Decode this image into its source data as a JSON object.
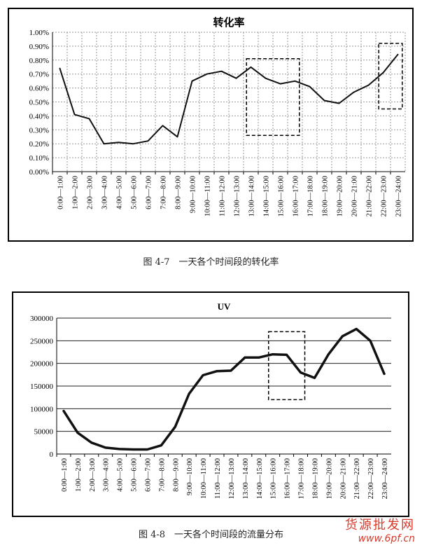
{
  "figures": [
    {
      "caption": "图 4-7　一天各个时间段的转化率"
    },
    {
      "caption": "图 4-8　一天各个时间段的流量分布"
    }
  ],
  "watermark": {
    "text": "货源批发网",
    "url": "www.6pf.cn"
  },
  "chart_data": [
    {
      "type": "line",
      "title": "转化率",
      "xlabel": "",
      "ylabel": "",
      "ylim": [
        0,
        1.0
      ],
      "y_tick_labels": [
        "0.00%",
        "0.10%",
        "0.20%",
        "0.30%",
        "0.40%",
        "0.50%",
        "0.60%",
        "0.70%",
        "0.80%",
        "0.90%",
        "1.00%"
      ],
      "grid": true,
      "categories": [
        "0:00—1:00",
        "1:00—2:00",
        "2:00—3:00",
        "3:00—4:00",
        "4:00—5:00",
        "5:00—6:00",
        "6:00—7:00",
        "7:00—8:00",
        "8:00—9:00",
        "9:00—10:00",
        "10:00—11:00",
        "11:00—12:00",
        "12:00—13:00",
        "13:00—14:00",
        "14:00—15:00",
        "15:00—16:00",
        "16:00—17:00",
        "17:00—18:00",
        "18:00—19:00",
        "19:00—20:00",
        "20:00—21:00",
        "21:00—22:00",
        "22:00—23:00",
        "23:00—24:00"
      ],
      "values": [
        0.74,
        0.41,
        0.38,
        0.2,
        0.21,
        0.2,
        0.22,
        0.33,
        0.25,
        0.65,
        0.7,
        0.72,
        0.67,
        0.75,
        0.67,
        0.63,
        0.65,
        0.61,
        0.51,
        0.49,
        0.57,
        0.62,
        0.71,
        0.84
      ],
      "color": "#111111",
      "highlights": [
        {
          "from": "13:00—14:00",
          "to": "16:00—17:00",
          "ymin": 0.26,
          "ymax": 0.81
        },
        {
          "from": "22:00—23:00",
          "to": "23:00—24:00",
          "ymin": 0.45,
          "ymax": 0.92
        }
      ]
    },
    {
      "type": "line",
      "title": "UV",
      "xlabel": "",
      "ylabel": "",
      "ylim": [
        0,
        300000
      ],
      "y_tick_labels": [
        "0",
        "50000",
        "100000",
        "150000",
        "200000",
        "250000",
        "300000"
      ],
      "grid": true,
      "categories": [
        "0:00—1:00",
        "1:00—2:00",
        "2:00—3:00",
        "3:00—4:00",
        "4:00—5:00",
        "5:00—6:00",
        "6:00—7:00",
        "7:00—8:00",
        "8:00—9:00",
        "9:00—10:00",
        "10:00—11:00",
        "11:00—12:00",
        "12:00—13:00",
        "13:00—14:00",
        "14:00—15:00",
        "15:00—16:00",
        "16:00—17:00",
        "17:00—18:00",
        "18:00—19:00",
        "19:00—20:00",
        "20:00—21:00",
        "21:00—22:00",
        "22:00—23:00",
        "23:00—24:00"
      ],
      "values": [
        95000,
        47000,
        25000,
        14000,
        11000,
        10000,
        10000,
        19000,
        60000,
        133000,
        174000,
        183000,
        184000,
        213000,
        213000,
        220000,
        219000,
        180000,
        168000,
        220000,
        260000,
        276000,
        250000,
        177000
      ],
      "color": "#111111",
      "highlights": [
        {
          "from": "15:00—16:00",
          "to": "17:00—18:00",
          "ymin": 120000,
          "ymax": 270000
        }
      ]
    }
  ]
}
